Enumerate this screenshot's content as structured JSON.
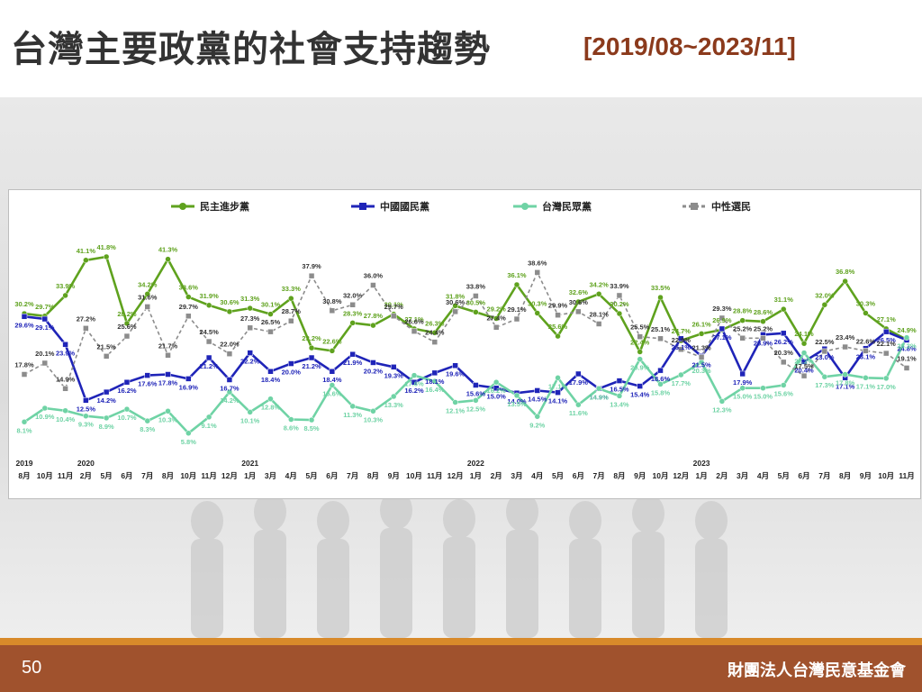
{
  "slide": {
    "title": "台灣主要政黨的社會支持趨勢",
    "date_range": "[2019/08~2023/11]",
    "page_number": "50",
    "organization": "財團法人台灣民意基金會"
  },
  "colors": {
    "dpp": "#5fa21e",
    "kmt": "#1f24b8",
    "tpp": "#6fd3a5",
    "neutral": "#8c8c8c",
    "footer": "#a0522d",
    "footer_line": "#d88a2a",
    "title_range": "#8b3a1c"
  },
  "chart_data": {
    "type": "line",
    "title": "",
    "xlabel": "",
    "ylabel": "",
    "ylim": [
      3,
      44
    ],
    "grid": false,
    "legend_position": "top",
    "x": [
      "8月",
      "10月",
      "11月",
      "2月",
      "5月",
      "6月",
      "7月",
      "8月",
      "10月",
      "11月",
      "12月",
      "1月",
      "3月",
      "4月",
      "5月",
      "6月",
      "7月",
      "8月",
      "9月",
      "10月",
      "11月",
      "12月",
      "1月",
      "2月",
      "3月",
      "4月",
      "5月",
      "6月",
      "7月",
      "8月",
      "9月",
      "10月",
      "12月",
      "1月",
      "2月",
      "3月",
      "4月",
      "5月",
      "6月",
      "7月",
      "8月",
      "9月",
      "10月",
      "11月"
    ],
    "year_labels": [
      {
        "label": "2019",
        "index": 0
      },
      {
        "label": "2020",
        "index": 3
      },
      {
        "label": "2021",
        "index": 11
      },
      {
        "label": "2022",
        "index": 22
      },
      {
        "label": "2023",
        "index": 33
      }
    ],
    "series": [
      {
        "name": "民主進步黨",
        "key": "dpp",
        "marker": "circle",
        "dash": "",
        "values": [
          30.2,
          29.7,
          33.9,
          41.1,
          41.8,
          28.2,
          34.2,
          41.3,
          33.6,
          31.9,
          30.6,
          31.3,
          30.1,
          33.3,
          23.2,
          22.6,
          28.3,
          27.8,
          30.1,
          27.1,
          26.3,
          31.8,
          30.5,
          29.2,
          36.1,
          30.3,
          25.6,
          32.6,
          34.2,
          30.2,
          22.4,
          33.5,
          24.7,
          26.1,
          26.9,
          28.8,
          28.6,
          31.1,
          24.1,
          32.0,
          36.8,
          30.3,
          27.1,
          24.9
        ]
      },
      {
        "name": "中國國民黨",
        "key": "kmt",
        "marker": "square",
        "dash": "",
        "values": [
          29.6,
          29.1,
          23.9,
          12.5,
          14.2,
          16.2,
          17.6,
          17.8,
          16.9,
          21.2,
          16.7,
          22.2,
          18.4,
          20.0,
          21.2,
          18.4,
          21.9,
          20.2,
          19.3,
          16.2,
          18.1,
          19.6,
          15.6,
          15.0,
          14.0,
          14.5,
          14.1,
          17.9,
          14.9,
          16.5,
          15.4,
          18.6,
          25.1,
          21.5,
          27.1,
          17.9,
          25.9,
          26.2,
          20.4,
          23.0,
          17.1,
          23.1,
          26.5,
          24.8
        ]
      },
      {
        "name": "台灣民眾黨",
        "key": "tpp",
        "marker": "circle",
        "dash": "",
        "values": [
          8.1,
          10.9,
          10.4,
          9.3,
          8.9,
          10.7,
          8.3,
          10.3,
          5.8,
          9.1,
          14.2,
          10.1,
          12.8,
          8.6,
          8.5,
          15.6,
          11.3,
          10.3,
          13.3,
          17.6,
          16.4,
          12.1,
          12.5,
          16.2,
          13.5,
          9.2,
          17.1,
          11.6,
          14.9,
          13.4,
          20.9,
          15.8,
          17.7,
          20.3,
          12.3,
          15.0,
          15.0,
          15.6,
          22.2,
          17.3,
          17.8,
          17.1,
          17.0,
          25.3
        ]
      },
      {
        "name": "中性選民",
        "key": "neutral",
        "marker": "square",
        "dash": "4,3",
        "values": [
          17.8,
          20.1,
          14.9,
          27.2,
          21.5,
          25.6,
          31.6,
          21.7,
          29.7,
          24.5,
          22.0,
          27.3,
          26.5,
          28.7,
          37.9,
          30.8,
          32.0,
          36.0,
          29.7,
          26.6,
          24.4,
          30.6,
          33.8,
          27.4,
          29.1,
          38.6,
          29.9,
          30.6,
          28.1,
          33.9,
          25.5,
          25.1,
          22.9,
          21.3,
          29.3,
          25.2,
          25.2,
          20.3,
          17.5,
          22.5,
          23.4,
          22.6,
          22.1,
          19.1
        ]
      }
    ]
  }
}
